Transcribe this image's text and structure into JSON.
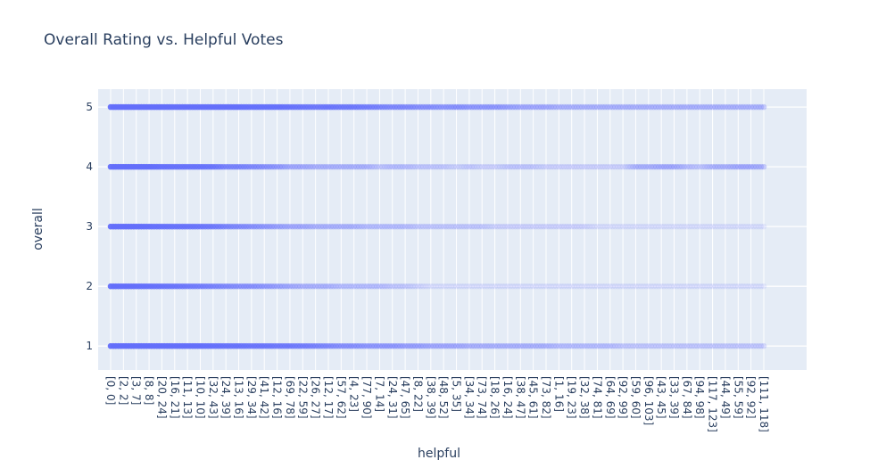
{
  "chart_data": {
    "type": "scatter",
    "title": "Overall Rating vs. Helpful Votes",
    "xlabel": "helpful",
    "ylabel": "overall",
    "x_axis_kind": "category",
    "ylim": [
      0.6,
      5.3
    ],
    "yticks": [
      1,
      2,
      3,
      4,
      5
    ],
    "grid": true,
    "legend": "none",
    "colors": {
      "marker": "#636efa",
      "plot_bg": "#e5ecf6",
      "grid": "#ffffff",
      "text": "#2a3f5f"
    },
    "marker_opacity": 0.2,
    "xtick_labels": [
      "[0, 0]",
      "[2, 2]",
      "[3, 7]",
      "[8, 8]",
      "[20, 24]",
      "[16, 21]",
      "[11, 13]",
      "[10, 10]",
      "[32, 43]",
      "[24, 39]",
      "[13, 16]",
      "[29, 34]",
      "[41, 42]",
      "[12, 16]",
      "[69, 78]",
      "[22, 59]",
      "[26, 27]",
      "[12, 17]",
      "[57, 62]",
      "[4, 23]",
      "[77, 90]",
      "[7, 14]",
      "[24, 31]",
      "[47, 65]",
      "[8, 22]",
      "[38, 39]",
      "[48, 52]",
      "[5, 35]",
      "[34, 34]",
      "[73, 74]",
      "[18, 26]",
      "[16, 24]",
      "[38, 47]",
      "[45, 61]",
      "[73, 82]",
      "[1, 16]",
      "[19, 23]",
      "[32, 38]",
      "[74, 81]",
      "[64, 69]",
      "[92, 99]",
      "[59, 60]",
      "[96, 103]",
      "[43, 45]",
      "[33, 39]",
      "[67, 84]",
      "[94, 98]",
      "[117, 123]",
      "[44, 49]",
      "[55, 59]",
      "[92, 92]",
      "[111, 118]"
    ],
    "rows": [
      {
        "y": 5,
        "density": [
          0.95,
          0.95,
          0.95,
          0.95,
          0.95,
          0.9,
          0.9,
          0.9,
          0.9,
          0.9,
          0.9,
          0.85,
          0.85,
          0.85,
          0.8,
          0.75,
          0.7,
          0.75,
          0.7,
          0.7,
          0.65,
          0.6,
          0.55,
          0.55,
          0.5,
          0.5,
          0.45,
          0.5,
          0.45,
          0.45,
          0.45,
          0.4,
          0.35,
          0.35,
          0.35,
          0.3,
          0.3,
          0.3,
          0.3,
          0.3,
          0.3,
          0.3,
          0.3,
          0.3,
          0.3,
          0.3,
          0.3,
          0.3,
          0.3,
          0.3,
          0.3,
          0.3
        ]
      },
      {
        "y": 4,
        "density": [
          0.95,
          0.95,
          0.95,
          0.95,
          0.85,
          0.8,
          0.8,
          0.8,
          0.75,
          0.6,
          0.6,
          0.55,
          0.5,
          0.45,
          0.35,
          0.35,
          0.3,
          0.3,
          0.3,
          0.3,
          0.3,
          0.2,
          0.25,
          0.25,
          0.2,
          0.2,
          0.2,
          0.15,
          0.2,
          0.15,
          0.15,
          0.2,
          0.2,
          0.2,
          0.15,
          0.15,
          0.15,
          0.15,
          0.15,
          0.15,
          0.15,
          0.3,
          0.3,
          0.35,
          0.35,
          0.25,
          0.2,
          0.3,
          0.3,
          0.35,
          0.35,
          0.3
        ]
      },
      {
        "y": 3,
        "density": [
          0.95,
          0.95,
          0.95,
          0.9,
          0.85,
          0.8,
          0.8,
          0.75,
          0.7,
          0.6,
          0.55,
          0.5,
          0.45,
          0.4,
          0.35,
          0.35,
          0.3,
          0.3,
          0.3,
          0.3,
          0.25,
          0.25,
          0.25,
          0.25,
          0.2,
          0.2,
          0.2,
          0.2,
          0.2,
          0.2,
          0.15,
          0.15,
          0.15,
          0.15,
          0.15,
          0.15,
          0.15,
          0.15,
          0.1,
          0.1,
          0.1,
          0.1,
          0.1,
          0.1,
          0.1,
          0.1,
          0.1,
          0.1,
          0.1,
          0.1,
          0.1,
          0.1
        ]
      },
      {
        "y": 2,
        "density": [
          0.95,
          0.9,
          0.9,
          0.85,
          0.8,
          0.75,
          0.7,
          0.65,
          0.6,
          0.55,
          0.5,
          0.5,
          0.45,
          0.4,
          0.35,
          0.3,
          0.3,
          0.3,
          0.25,
          0.25,
          0.25,
          0.25,
          0.2,
          0.2,
          0.15,
          0.1,
          0.1,
          0.1,
          0.1,
          0.1,
          0.1,
          0.1,
          0.1,
          0.1,
          0.1,
          0.1,
          0.1,
          0.1,
          0.1,
          0.1,
          0.1,
          0.1,
          0.1,
          0.1,
          0.1,
          0.1,
          0.1,
          0.1,
          0.1,
          0.1,
          0.1,
          0.1
        ]
      },
      {
        "y": 1,
        "density": [
          0.95,
          0.95,
          0.95,
          0.95,
          0.95,
          0.9,
          0.9,
          0.9,
          0.85,
          0.8,
          0.8,
          0.75,
          0.75,
          0.7,
          0.7,
          0.65,
          0.6,
          0.55,
          0.5,
          0.5,
          0.45,
          0.45,
          0.45,
          0.4,
          0.4,
          0.35,
          0.35,
          0.35,
          0.3,
          0.3,
          0.3,
          0.3,
          0.3,
          0.3,
          0.3,
          0.25,
          0.25,
          0.25,
          0.25,
          0.25,
          0.2,
          0.2,
          0.2,
          0.2,
          0.2,
          0.2,
          0.2,
          0.2,
          0.2,
          0.2,
          0.2,
          0.2
        ]
      }
    ]
  }
}
